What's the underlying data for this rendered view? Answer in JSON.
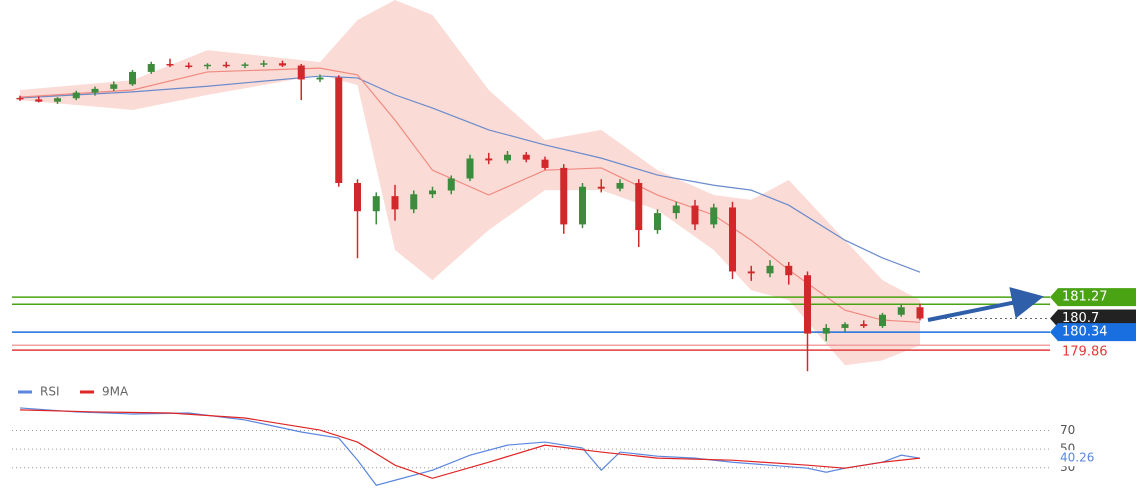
{
  "chart_data": [
    {
      "type": "candlestick",
      "up_color": "#3d8b3d",
      "down_color": "#d0282b",
      "ylim": [
        179.2,
        189.16
      ],
      "candles": [
        [
          186.56,
          186.62,
          186.48,
          186.52
        ],
        [
          186.52,
          186.6,
          186.44,
          186.46
        ],
        [
          186.46,
          186.58,
          186.4,
          186.55
        ],
        [
          186.55,
          186.75,
          186.5,
          186.7
        ],
        [
          186.7,
          186.86,
          186.62,
          186.8
        ],
        [
          186.8,
          187.0,
          186.74,
          186.92
        ],
        [
          186.92,
          187.3,
          186.88,
          187.25
        ],
        [
          187.25,
          187.52,
          187.2,
          187.46
        ],
        [
          187.46,
          187.6,
          187.38,
          187.42
        ],
        [
          187.42,
          187.5,
          187.34,
          187.4
        ],
        [
          187.4,
          187.48,
          187.32,
          187.44
        ],
        [
          187.44,
          187.52,
          187.36,
          187.41
        ],
        [
          187.41,
          187.5,
          187.35,
          187.45
        ],
        [
          187.45,
          187.56,
          187.38,
          187.48
        ],
        [
          187.48,
          187.55,
          187.38,
          187.42
        ],
        [
          187.42,
          187.46,
          186.5,
          187.05
        ],
        [
          187.05,
          187.18,
          186.98,
          187.1
        ],
        [
          187.1,
          187.16,
          184.2,
          184.3
        ],
        [
          184.3,
          184.4,
          182.3,
          183.55
        ],
        [
          183.55,
          184.05,
          183.2,
          183.95
        ],
        [
          183.95,
          184.25,
          183.3,
          183.6
        ],
        [
          183.6,
          184.1,
          183.5,
          184.0
        ],
        [
          184.0,
          184.2,
          183.9,
          184.1
        ],
        [
          184.1,
          184.5,
          184.0,
          184.42
        ],
        [
          184.42,
          185.05,
          184.35,
          184.95
        ],
        [
          184.95,
          185.1,
          184.8,
          184.9
        ],
        [
          184.9,
          185.15,
          184.82,
          185.05
        ],
        [
          185.05,
          185.12,
          184.85,
          184.92
        ],
        [
          184.92,
          185.0,
          184.65,
          184.7
        ],
        [
          184.7,
          184.8,
          182.95,
          183.2
        ],
        [
          183.2,
          184.3,
          183.1,
          184.2
        ],
        [
          184.2,
          184.4,
          184.05,
          184.15
        ],
        [
          184.15,
          184.4,
          184.08,
          184.3
        ],
        [
          184.3,
          184.4,
          182.6,
          183.05
        ],
        [
          183.05,
          183.6,
          182.95,
          183.5
        ],
        [
          183.5,
          183.8,
          183.35,
          183.7
        ],
        [
          183.7,
          183.85,
          183.05,
          183.2
        ],
        [
          183.2,
          183.75,
          183.1,
          183.65
        ],
        [
          183.65,
          183.8,
          181.75,
          181.95
        ],
        [
          181.95,
          182.1,
          181.7,
          181.9
        ],
        [
          181.9,
          182.25,
          181.8,
          182.1
        ],
        [
          182.1,
          182.2,
          181.6,
          181.85
        ],
        [
          181.85,
          181.95,
          179.3,
          180.3
        ],
        [
          180.3,
          180.55,
          180.1,
          180.45
        ],
        [
          180.45,
          180.6,
          180.35,
          180.55
        ],
        [
          180.55,
          180.65,
          180.45,
          180.5
        ],
        [
          180.5,
          180.85,
          180.45,
          180.8
        ],
        [
          180.8,
          181.1,
          180.75,
          181.0
        ],
        [
          181.0,
          181.1,
          180.65,
          180.7
        ]
      ],
      "indicators": {
        "x": [
          0,
          6,
          10,
          16,
          18,
          20,
          22,
          25,
          28,
          31,
          34,
          37,
          39,
          41,
          44,
          46,
          48
        ],
        "band_color": "#f9cfc8",
        "band_upper": [
          186.77,
          187.03,
          187.83,
          187.51,
          188.63,
          189.16,
          188.76,
          186.77,
          185.44,
          185.71,
          184.64,
          183.98,
          183.85,
          184.38,
          182.78,
          181.72,
          181.19
        ],
        "band_lower": [
          186.5,
          186.24,
          186.64,
          187.17,
          186.9,
          182.52,
          181.72,
          183.05,
          184.11,
          184.11,
          183.58,
          182.52,
          181.45,
          181.19,
          179.46,
          179.59,
          179.99
        ],
        "slow_ma_color": "#6a8bcc",
        "slow_ma": [
          186.56,
          186.72,
          186.87,
          187.14,
          187.09,
          186.64,
          186.29,
          185.71,
          185.31,
          184.96,
          184.51,
          184.24,
          184.11,
          183.71,
          182.78,
          182.31,
          181.93
        ],
        "fast_ma_color": "#f08a80",
        "fast_ma": [
          186.58,
          186.77,
          187.25,
          187.35,
          187.17,
          185.97,
          184.64,
          183.98,
          184.64,
          184.7,
          183.98,
          183.45,
          182.78,
          181.99,
          180.92,
          180.66,
          180.6
        ]
      },
      "levels": [
        {
          "value": 181.27,
          "color": "#4aa312",
          "tag": "box"
        },
        {
          "value": 181.08,
          "color": "#4aa312",
          "tag": "none"
        },
        {
          "value": 180.7,
          "color": "#222222",
          "tag": "box",
          "dotted": true
        },
        {
          "value": 180.34,
          "color": "#1a6fe0",
          "tag": "box"
        },
        {
          "value": 179.99,
          "color": "#f0a0a0",
          "tag": "none"
        },
        {
          "value": 179.86,
          "color": "#e23a3a",
          "tag": "text"
        }
      ]
    },
    {
      "type": "line",
      "ylim": [
        6,
        119
      ],
      "yticks": [
        30,
        50,
        70
      ],
      "grid": true,
      "series": [
        {
          "name": "RSI",
          "color": "#5b86de",
          "x": [
            0,
            3,
            6,
            9,
            12,
            15,
            17,
            18,
            19,
            20,
            22,
            24,
            26,
            28,
            30,
            31,
            32,
            34,
            36,
            38,
            40,
            42,
            43,
            44,
            46,
            47,
            48
          ],
          "values": [
            94.3,
            90.0,
            87.8,
            88.9,
            81.4,
            68.4,
            61.9,
            38.1,
            11.1,
            16.5,
            27.3,
            43.5,
            54.3,
            57.6,
            51.1,
            27.3,
            46.8,
            42.4,
            40.3,
            35.9,
            32.7,
            29.5,
            25.1,
            29.5,
            35.9,
            43.5,
            40.26
          ]
        },
        {
          "name": "9MA",
          "color": "#e02424",
          "x": [
            0,
            4,
            8,
            12,
            16,
            18,
            20,
            22,
            25,
            28,
            31,
            34,
            38,
            42,
            44,
            46,
            48
          ],
          "values": [
            92.2,
            90.0,
            88.9,
            83.5,
            70.5,
            57.6,
            32.7,
            18.6,
            35.9,
            54.3,
            46.8,
            40.3,
            38.1,
            32.7,
            29.5,
            35.9,
            40.3
          ]
        }
      ]
    }
  ]
}
